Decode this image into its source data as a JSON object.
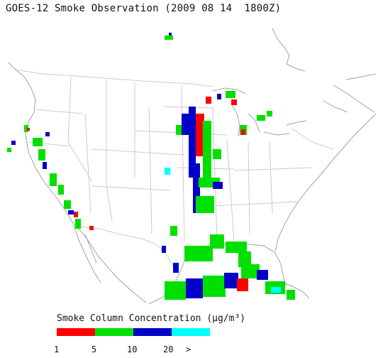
{
  "title": "GOES-12 Smoke Observation (2009 08 14  1800Z)",
  "legend": {
    "title": "Smoke Column Concentration (μg/m³)",
    "colors": [
      "#ff0000",
      "#00e000",
      "#0000c8",
      "#00ffff"
    ],
    "ticks": [
      "1",
      "5",
      "10",
      "20",
      ">"
    ]
  },
  "palette": {
    "land_fill": "#ffffff",
    "border_line": "#c8c8c8",
    "coast_line": "#a0a0a0"
  }
}
